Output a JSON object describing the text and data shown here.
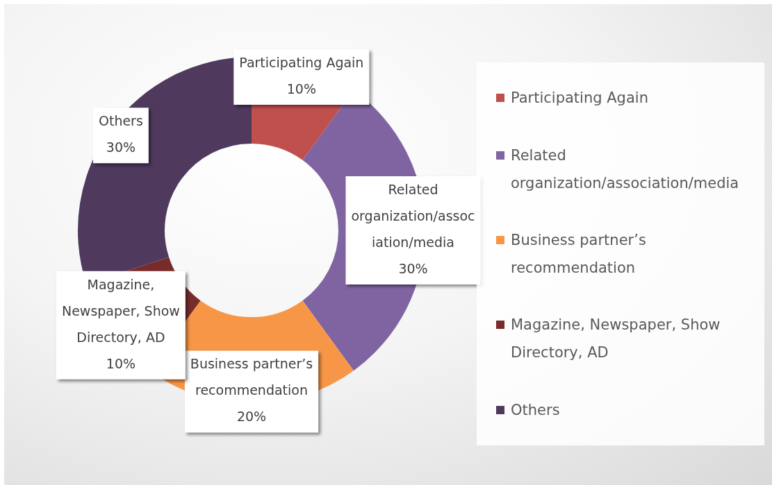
{
  "chart_data": {
    "type": "donut",
    "categories": [
      "Participating Again",
      "Related organization/association/media",
      "Business partner’s recommendation",
      "Magazine, Newspaper, Show Directory, AD",
      "Others"
    ],
    "values": [
      10,
      30,
      20,
      10,
      30
    ],
    "value_labels": [
      "10%",
      "30%",
      "20%",
      "10%",
      "30%"
    ],
    "colors": [
      "#c0504d",
      "#8064a2",
      "#f79646",
      "#772c2a",
      "#4f3a5e"
    ],
    "legend": "right"
  }
}
